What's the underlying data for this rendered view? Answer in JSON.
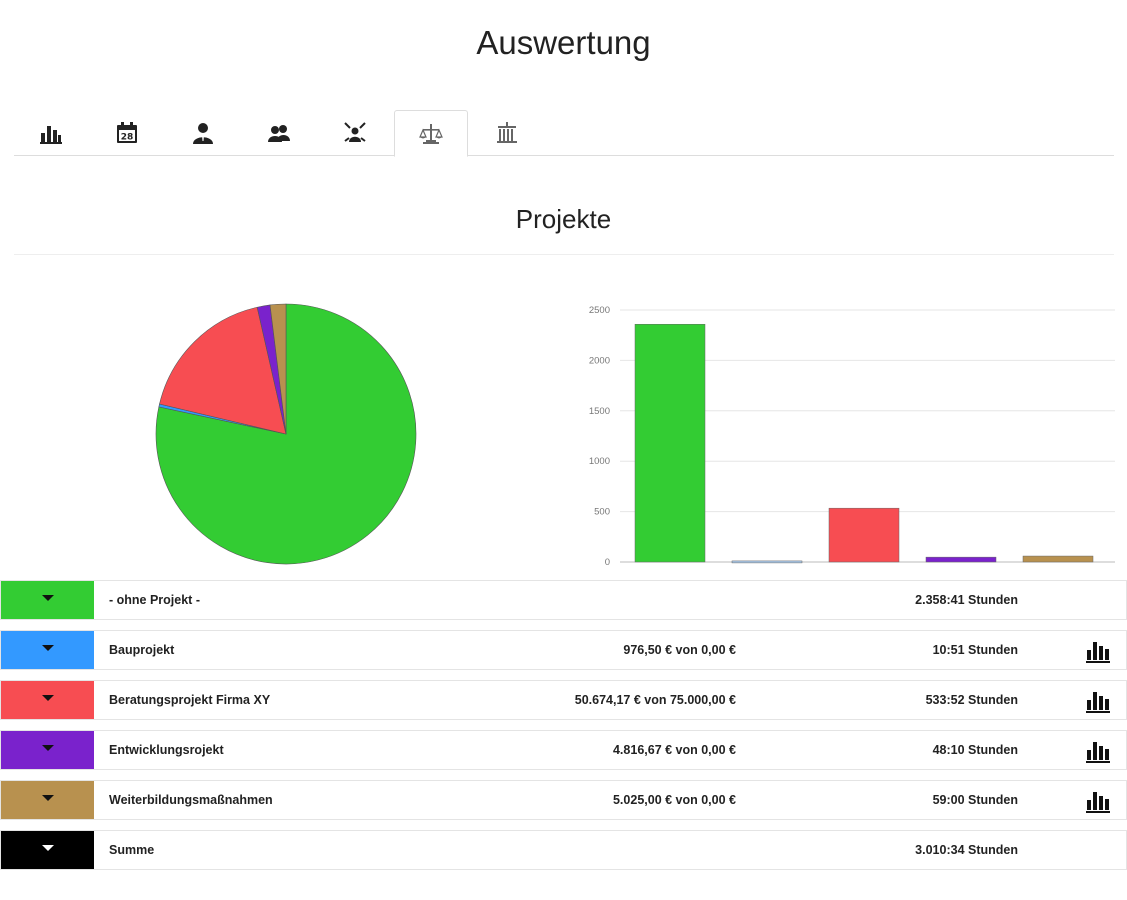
{
  "page": {
    "title": "Auswertung"
  },
  "tabs": [
    {
      "icon": "bar-chart-icon",
      "active": false
    },
    {
      "icon": "calendar-icon",
      "label": "28",
      "active": false
    },
    {
      "icon": "user-icon",
      "active": false
    },
    {
      "icon": "users-icon",
      "active": false
    },
    {
      "icon": "team-center-icon",
      "active": false
    },
    {
      "icon": "project-scale-icon",
      "active": true
    },
    {
      "icon": "building-icon",
      "active": false
    }
  ],
  "section": {
    "title": "Projekte"
  },
  "colors": {
    "green": "#33cc33",
    "blue": "#3399ff",
    "red": "#f74d52",
    "purple": "#7a22cc",
    "brown": "#b8914f",
    "black": "#000000"
  },
  "chart_data": [
    {
      "type": "pie",
      "categories": [
        "- ohne Projekt -",
        "Bauprojekt",
        "Beratungsprojekt Firma XY",
        "Entwicklungsrojekt",
        "Weiterbildungsmaßnahmen"
      ],
      "values": [
        2358.68,
        10.85,
        533.87,
        48.17,
        59.0
      ],
      "colors": [
        "#33cc33",
        "#3399ff",
        "#f74d52",
        "#7a22cc",
        "#b8914f"
      ]
    },
    {
      "type": "bar",
      "categories": [
        "- ohne Projekt -",
        "Bauprojekt",
        "Beratungsprojekt Firma XY",
        "Entwicklungsrojekt",
        "Weiterbildungsmaßnahmen"
      ],
      "values": [
        2358.68,
        10.85,
        533.87,
        48.17,
        59.0
      ],
      "colors": [
        "#33cc33",
        "#a9c8e8",
        "#f74d52",
        "#7a22cc",
        "#b8914f"
      ],
      "ylim": [
        0,
        2500
      ],
      "yticks": [
        "0",
        "500",
        "1000",
        "1500",
        "2000",
        "2500"
      ],
      "grid": true
    }
  ],
  "rows": [
    {
      "name": "- ohne Projekt -",
      "money": "",
      "hours": "2.358:41 Stunden",
      "color": "#33cc33",
      "has_chart": false,
      "caret": "dark"
    },
    {
      "name": "Bauprojekt",
      "money": "976,50 € von 0,00 €",
      "hours": "10:51 Stunden",
      "color": "#3399ff",
      "has_chart": true,
      "caret": "dark"
    },
    {
      "name": "Beratungsprojekt Firma XY",
      "money": "50.674,17 € von 75.000,00 €",
      "hours": "533:52 Stunden",
      "color": "#f74d52",
      "has_chart": true,
      "caret": "dark"
    },
    {
      "name": "Entwicklungsrojekt",
      "money": "4.816,67 € von 0,00 €",
      "hours": "48:10 Stunden",
      "color": "#7a22cc",
      "has_chart": true,
      "caret": "dark"
    },
    {
      "name": "Weiterbildungsmaßnahmen",
      "money": "5.025,00 € von 0,00 €",
      "hours": "59:00 Stunden",
      "color": "#b8914f",
      "has_chart": true,
      "caret": "dark"
    },
    {
      "name": "Summe",
      "money": "",
      "hours": "3.010:34 Stunden",
      "color": "#000000",
      "has_chart": false,
      "caret": "light"
    }
  ]
}
